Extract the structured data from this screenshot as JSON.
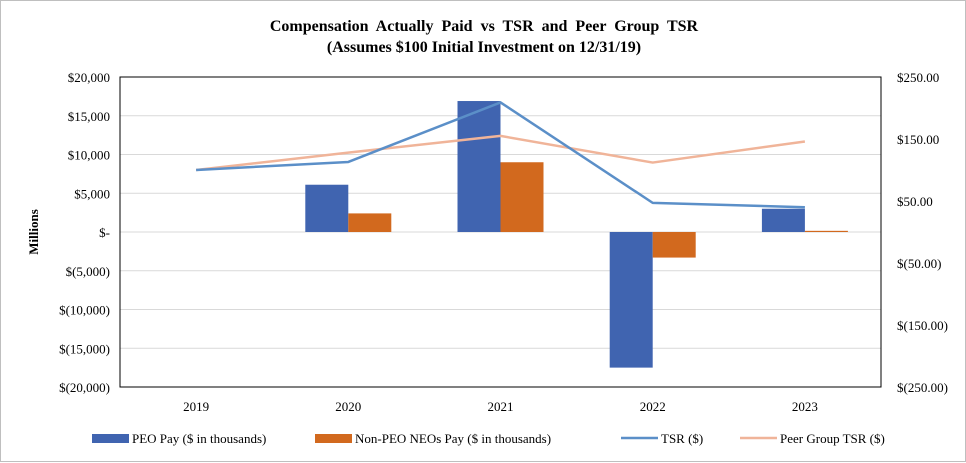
{
  "chart_data": {
    "type": "bar",
    "title": "Compensation  Actually  Paid  vs  TSR  and  Peer  Group  TSR",
    "subtitle": "(Assumes $100 Initial Investment on 12/31/19)",
    "categories": [
      "2019",
      "2020",
      "2021",
      "2022",
      "2023"
    ],
    "ylabel": "Millions",
    "ylim": [
      -20000,
      20000
    ],
    "y_ticks": [
      20000,
      15000,
      10000,
      5000,
      0,
      -5000,
      -10000,
      -15000,
      -20000
    ],
    "y_tick_labels": [
      "$20,000",
      "$15,000",
      "$10,000",
      "$5,000",
      "$-",
      "$(5,000)",
      "$(10,000)",
      "$(15,000)",
      "$(20,000)"
    ],
    "y2lim": [
      -250,
      250
    ],
    "y2_ticks": [
      250,
      150,
      50,
      -50,
      -150,
      -250
    ],
    "y2_tick_labels": [
      "$250.00",
      "$150.00",
      "$50.00",
      "$(50.00)",
      "$(150.00)",
      "$(250.00)"
    ],
    "grid": true,
    "legend_position": "bottom",
    "series": [
      {
        "name": "PEO Pay ($ in thousands)",
        "kind": "bar",
        "axis": "left",
        "color": "#4064b0",
        "values": [
          0,
          6100,
          16900,
          -17500,
          3000
        ]
      },
      {
        "name": "Non-PEO NEOs Pay ($ in thousands)",
        "kind": "bar",
        "axis": "left",
        "color": "#d2691e",
        "values": [
          0,
          2400,
          9000,
          -3300,
          150
        ]
      },
      {
        "name": "TSR ($)",
        "kind": "line",
        "axis": "right",
        "color": "#5b8fc8",
        "values": [
          100,
          113,
          209,
          47,
          40
        ]
      },
      {
        "name": "Peer Group TSR ($)",
        "kind": "line",
        "axis": "right",
        "color": "#f0b499",
        "values": [
          100,
          128,
          155,
          112,
          146
        ]
      }
    ]
  }
}
